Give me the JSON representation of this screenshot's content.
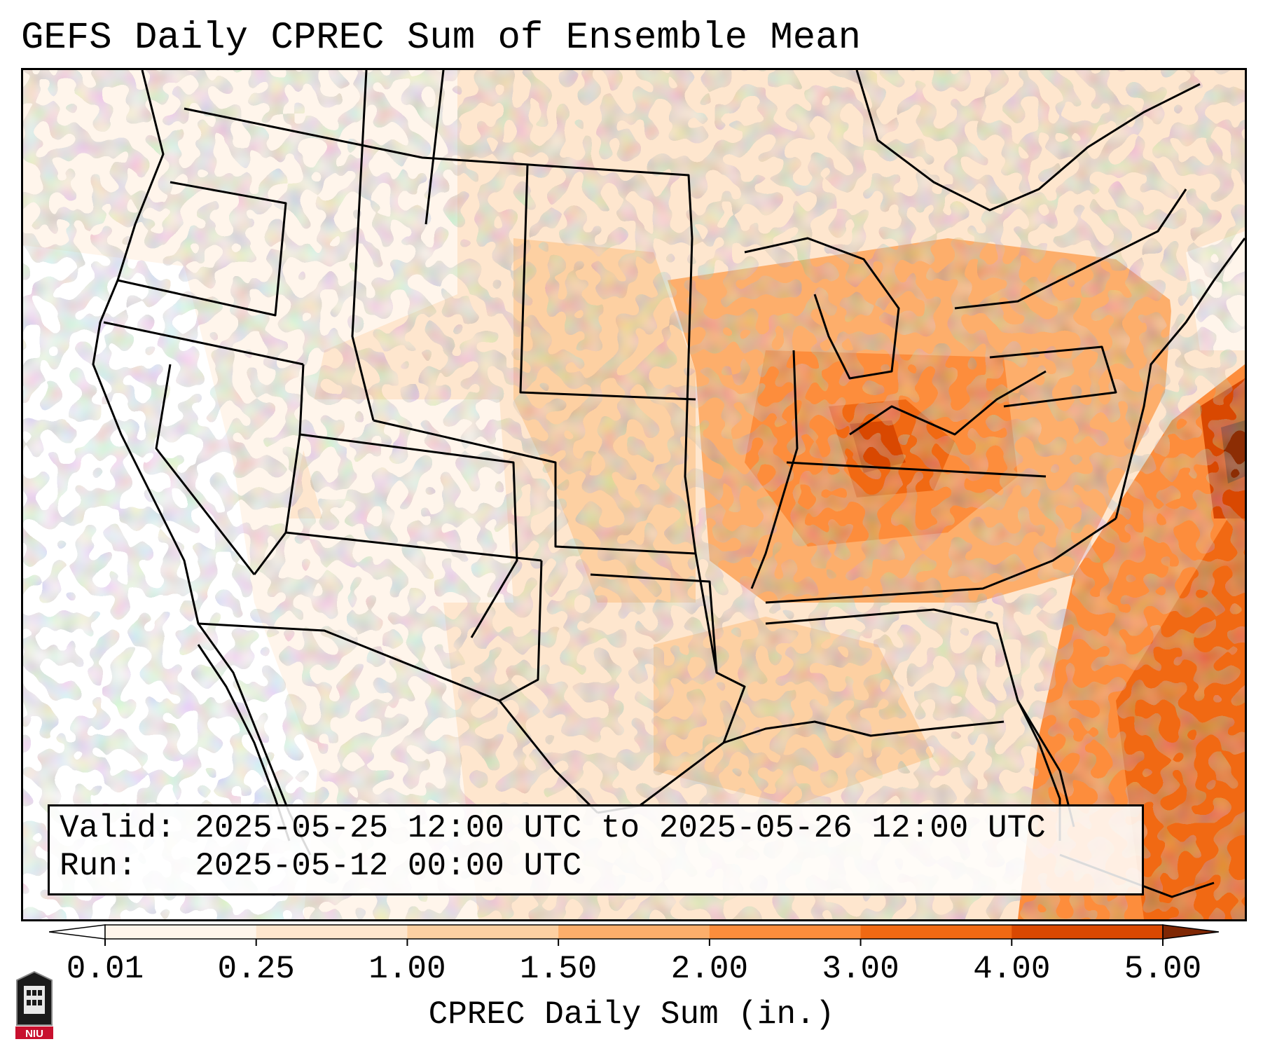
{
  "title": "GEFS Daily CPREC Sum of Ensemble Mean",
  "info": {
    "valid_line": "Valid: 2025-05-25 12:00 UTC to 2025-05-26 12:00 UTC",
    "run_line": "Run:   2025-05-12 00:00 UTC"
  },
  "colorbar": {
    "label": "CPREC Daily Sum (in.)",
    "ticks": [
      "0.01",
      "0.25",
      "1.00",
      "1.50",
      "2.00",
      "3.00",
      "4.00",
      "5.00"
    ],
    "colors": [
      "#fff5eb",
      "#fee6ce",
      "#fdd0a2",
      "#fdae6b",
      "#fd8d3c",
      "#f16913",
      "#d94801",
      "#8c2d04"
    ],
    "under_color": "#ffffff",
    "over_color": "#7f2704"
  },
  "logo": {
    "text": "NIU",
    "color": "#c8102e"
  }
}
